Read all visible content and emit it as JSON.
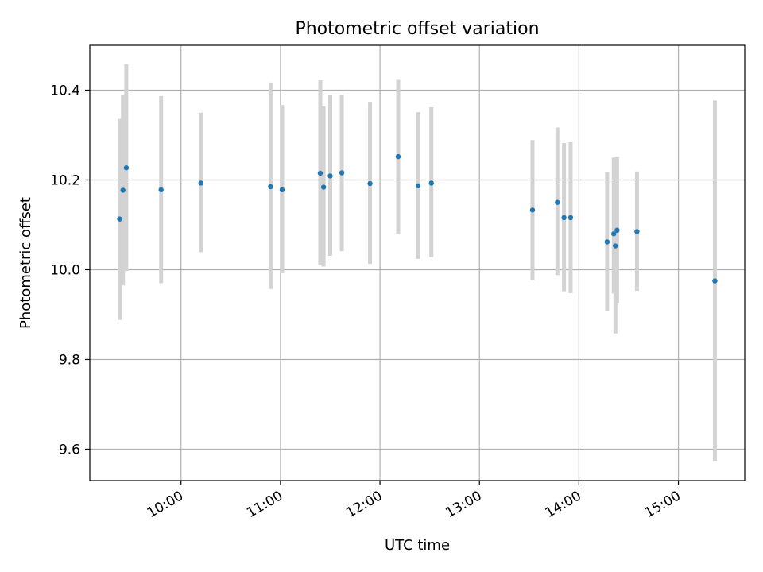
{
  "chart_data": {
    "type": "scatter",
    "title": "Photometric offset variation",
    "xlabel": "UTC time",
    "ylabel": "Photometric offset",
    "xlim": [
      "09:05",
      "15:40"
    ],
    "ylim": [
      9.53,
      10.5
    ],
    "x_ticks": [
      "10:00",
      "11:00",
      "12:00",
      "13:00",
      "14:00",
      "15:00"
    ],
    "y_ticks": [
      9.6,
      9.8,
      10.0,
      10.2,
      10.4
    ],
    "y_tick_labels": [
      "9.6",
      "9.8",
      "10.0",
      "10.2",
      "10.4"
    ],
    "grid": true,
    "colors": {
      "points": "#1f77b4",
      "error_bars": "#d3d3d3",
      "grid": "#b0b0b0"
    },
    "series": [
      {
        "x": [
          "09:23",
          "09:25",
          "09:27",
          "09:48",
          "10:12",
          "10:54",
          "11:01",
          "11:24",
          "11:26",
          "11:30",
          "11:37",
          "11:54",
          "12:11",
          "12:23",
          "12:31",
          "13:32",
          "13:47",
          "13:51",
          "13:55",
          "14:17",
          "14:21",
          "14:22",
          "14:23",
          "14:35",
          "15:22"
        ],
        "y": [
          10.113,
          10.177,
          10.227,
          10.178,
          10.193,
          10.185,
          10.178,
          10.215,
          10.184,
          10.209,
          10.216,
          10.192,
          10.252,
          10.187,
          10.193,
          10.133,
          10.15,
          10.116,
          10.116,
          10.062,
          10.08,
          10.053,
          10.088,
          10.085,
          9.975
        ],
        "y_err_low": [
          9.888,
          9.965,
          9.997,
          9.97,
          10.039,
          9.957,
          9.992,
          10.011,
          10.007,
          10.031,
          10.041,
          10.013,
          10.08,
          10.024,
          10.028,
          9.976,
          9.988,
          9.952,
          9.948,
          9.907,
          9.947,
          9.858,
          9.926,
          9.953,
          9.574
        ],
        "y_err_high": [
          10.336,
          10.39,
          10.458,
          10.387,
          10.35,
          10.417,
          10.367,
          10.422,
          10.364,
          10.389,
          10.39,
          10.374,
          10.423,
          10.351,
          10.362,
          10.289,
          10.317,
          10.282,
          10.284,
          10.218,
          10.25,
          10.25,
          10.252,
          10.219,
          10.377
        ]
      }
    ]
  }
}
